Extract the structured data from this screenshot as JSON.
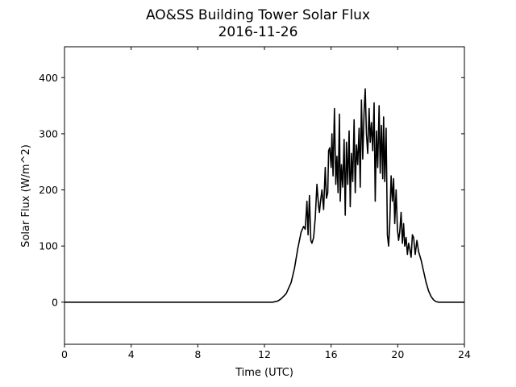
{
  "chart_data": {
    "type": "line",
    "title": "AO&SS Building Tower Solar Flux",
    "subtitle": "2016-11-26",
    "xlabel": "Time (UTC)",
    "ylabel": "Solar Flux (W/m^2)",
    "xlim": [
      0,
      24
    ],
    "ylim": [
      -75,
      455
    ],
    "xticks": [
      0,
      4,
      8,
      12,
      16,
      20,
      24
    ],
    "yticks": [
      0,
      100,
      200,
      300,
      400
    ],
    "grid": false,
    "legend": "none",
    "series": [
      {
        "color": "#000000",
        "x": [
          0,
          12.5,
          12.8,
          13.0,
          13.3,
          13.6,
          13.8,
          14.0,
          14.2,
          14.35,
          14.45,
          14.55,
          14.62,
          14.7,
          14.78,
          14.85,
          14.95,
          15.05,
          15.15,
          15.25,
          15.3,
          15.35,
          15.45,
          15.55,
          15.65,
          15.72,
          15.8,
          15.85,
          15.92,
          16.0,
          16.05,
          16.12,
          16.2,
          16.28,
          16.35,
          16.42,
          16.5,
          16.55,
          16.62,
          16.7,
          16.78,
          16.85,
          16.92,
          17.0,
          17.08,
          17.15,
          17.22,
          17.3,
          17.38,
          17.45,
          17.52,
          17.6,
          17.68,
          17.75,
          17.82,
          17.9,
          17.98,
          18.05,
          18.12,
          18.2,
          18.28,
          18.35,
          18.42,
          18.5,
          18.58,
          18.65,
          18.72,
          18.8,
          18.88,
          18.95,
          19.02,
          19.1,
          19.15,
          19.22,
          19.3,
          19.38,
          19.45,
          19.52,
          19.6,
          19.68,
          19.75,
          19.82,
          19.9,
          19.98,
          20.05,
          20.12,
          20.2,
          20.28,
          20.35,
          20.42,
          20.5,
          20.58,
          20.65,
          20.72,
          20.8,
          20.88,
          20.95,
          21.05,
          21.15,
          21.25,
          21.4,
          21.55,
          21.7,
          21.85,
          22.0,
          22.15,
          22.3,
          22.45,
          22.6,
          22.8,
          24
        ],
        "y": [
          0,
          0,
          2,
          6,
          15,
          35,
          60,
          95,
          125,
          135,
          130,
          180,
          120,
          190,
          110,
          105,
          115,
          150,
          210,
          170,
          160,
          175,
          200,
          165,
          240,
          185,
          195,
          270,
          275,
          240,
          300,
          225,
          345,
          210,
          260,
          195,
          335,
          180,
          245,
          205,
          290,
          155,
          285,
          210,
          305,
          170,
          265,
          215,
          325,
          195,
          280,
          245,
          310,
          205,
          360,
          255,
          340,
          380,
          300,
          265,
          345,
          285,
          320,
          270,
          355,
          180,
          305,
          240,
          350,
          230,
          315,
          220,
          330,
          215,
          310,
          120,
          100,
          140,
          225,
          180,
          220,
          140,
          200,
          130,
          110,
          125,
          160,
          105,
          140,
          100,
          115,
          85,
          105,
          95,
          80,
          120,
          115,
          85,
          110,
          90,
          75,
          55,
          35,
          20,
          10,
          4,
          1,
          0,
          0,
          0,
          0
        ]
      }
    ]
  }
}
